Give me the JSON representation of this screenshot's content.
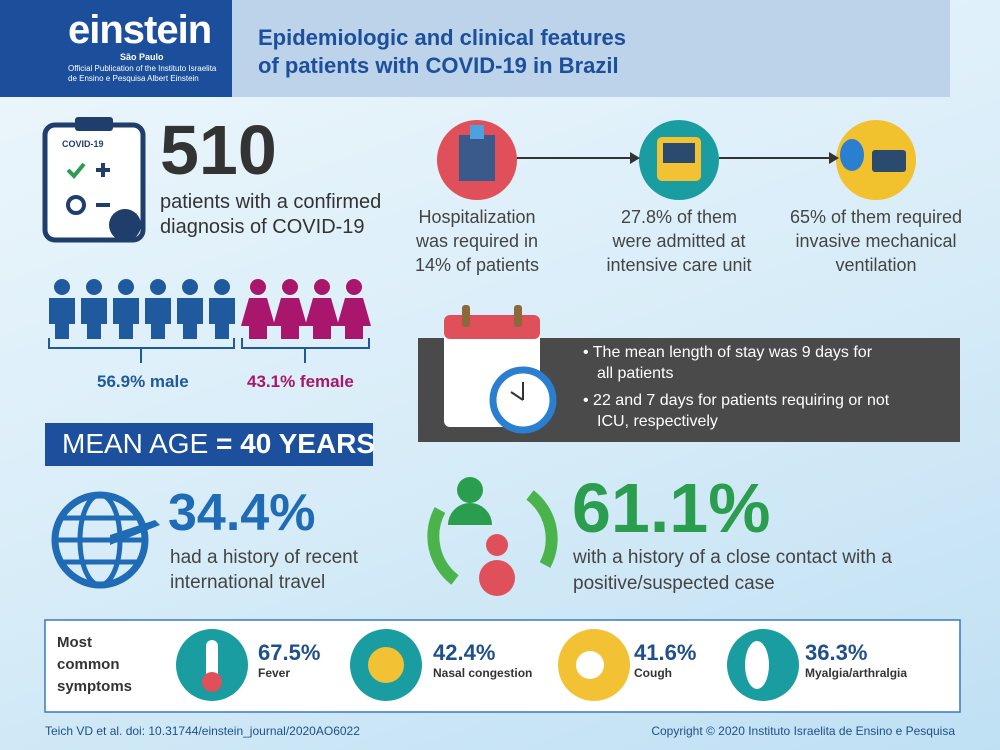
{
  "header": {
    "logo": "einstein",
    "logo_sub": "São Paulo",
    "publication": [
      "Official Publication of the Instituto Israelita",
      "de Ensino e Pesquisa Albert Einstein"
    ],
    "title": [
      "Epidemiologic and clinical features",
      "of patients with COVID-19 in Brazil"
    ]
  },
  "patients": {
    "icon_label": "COVID-19",
    "count": "510",
    "text": [
      "patients with a confirmed",
      "diagnosis of COVID-19"
    ]
  },
  "flow": [
    {
      "text": [
        "Hospitalization",
        "was required in",
        "14% of patients"
      ]
    },
    {
      "text": [
        "27.8% of them",
        "were admitted at",
        "intensive care unit"
      ]
    },
    {
      "text": [
        "65% of them required",
        "invasive mechanical",
        "ventilation"
      ]
    }
  ],
  "sex": {
    "male": "56.9% male",
    "female": "43.1% female"
  },
  "mean_age": {
    "label": "MEAN AGE",
    "equals": "=",
    "value": "40 YEARS"
  },
  "stay": {
    "bullets": [
      [
        "The mean length of stay was 9 days for",
        "all patients"
      ],
      [
        "22 and 7 days for patients requiring or not",
        "ICU, respectively"
      ]
    ]
  },
  "travel": {
    "value": "34.4%",
    "text": [
      "had a history of recent",
      "international travel"
    ]
  },
  "contact": {
    "value": "61.1%",
    "text": [
      "with a history of a close contact with a",
      "positive/suspected case"
    ]
  },
  "symptoms": {
    "heading": [
      "Most",
      "common",
      "symptoms"
    ],
    "items": [
      {
        "value": "67.5%",
        "label": "Fever"
      },
      {
        "value": "42.4%",
        "label": "Nasal congestion"
      },
      {
        "value": "41.6%",
        "label": "Cough"
      },
      {
        "value": "36.3%",
        "label": "Myalgia/arthralgia"
      }
    ]
  },
  "footer": {
    "citation": "Teich VD et al.  doi: 10.31744/einstein_journal/2020AO6022",
    "copyright": "Copyright © 2020 Instituto Israelita de Ensino e Pesquisa"
  }
}
